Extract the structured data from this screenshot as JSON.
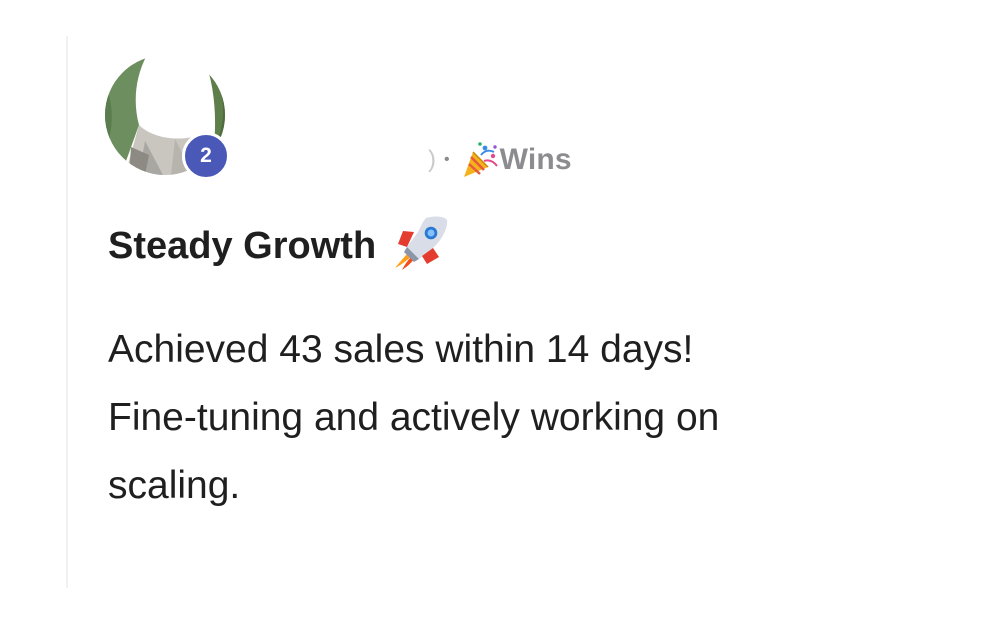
{
  "post": {
    "author_level": "2",
    "meta_fragment": ")",
    "meta_separator": "•",
    "category": "Wins",
    "title": "Steady Growth",
    "body_lines": [
      "Achieved 43 sales within 14 days!",
      "Fine-tuning and actively working on",
      "scaling."
    ]
  },
  "icons": {
    "category_icon": "party-popper-icon",
    "title_icon": "rocket-icon"
  },
  "colors": {
    "badge": "#4a58b8",
    "text": "#1f1f1f",
    "muted": "#8a8a8f"
  }
}
